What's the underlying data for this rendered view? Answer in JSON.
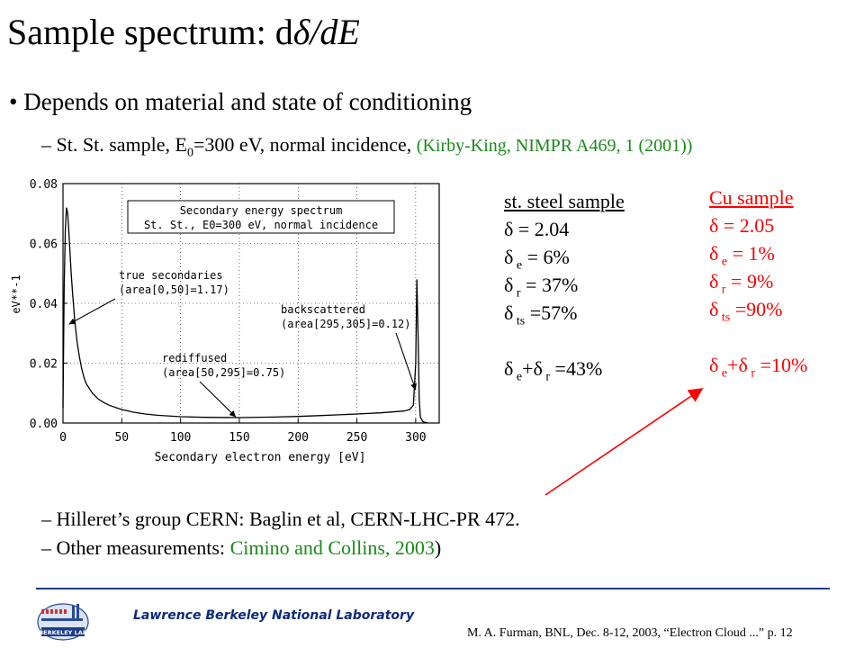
{
  "title": {
    "prefix": "Sample spectrum: d",
    "delta": "δ",
    "suffix": "/dE"
  },
  "bullet": "• Depends on material and state of conditioning",
  "sub1": {
    "text_before": "– St. St. sample, E",
    "subscript": "0",
    "text_after": "=300 eV, normal incidence, ",
    "citation": "(Kirby-King, NIMPR A469, 1 (2001))"
  },
  "steel": {
    "heading": "st. steel sample",
    "rows": [
      {
        "sym": "δ",
        "sub": "",
        "val": " = 2.04"
      },
      {
        "sym": "δ",
        "sub": " e",
        "val": " =   6%"
      },
      {
        "sym": "δ",
        "sub": " r",
        "val": " = 37%"
      },
      {
        "sym": "δ",
        "sub": " ts",
        "val": " =57%"
      },
      {
        "sym": "",
        "sub": "",
        "val": ""
      },
      {
        "sym": "δ",
        "sub": " e",
        "val": "+δ",
        "sub2": " r",
        "val2": " =43%"
      }
    ]
  },
  "cu": {
    "heading": "Cu sample",
    "rows": [
      {
        "sym": "δ",
        "sub": "",
        "val": " = 2.05"
      },
      {
        "sym": "δ",
        "sub": " e",
        "val": " =   1%"
      },
      {
        "sym": "δ",
        "sub": " r",
        "val": " =   9%"
      },
      {
        "sym": "δ",
        "sub": " ts",
        "val": " =90%"
      },
      {
        "sym": "",
        "sub": "",
        "val": ""
      },
      {
        "sym": "δ",
        "sub": " e",
        "val": "+δ",
        "sub2": " r",
        "val2": " =10%"
      }
    ]
  },
  "other1": "– Hilleret’s group CERN: Baglin et al, CERN-LHC-PR 472.",
  "other2": {
    "prefix": "– Other measurements: ",
    "link": "Cimino and Collins, 2003",
    "suffix": ")"
  },
  "footer": {
    "lab_name": "Lawrence Berkeley National Laboratory",
    "credit": "M. A. Furman, BNL, Dec. 8-12, 2003, “Electron Cloud ...”  p. 12",
    "logo_text": "BERKELEY LAB"
  },
  "colors": {
    "accent_red": "#ff0000",
    "green": "#1a8a1a",
    "footer_blue": "#1c3c8c"
  },
  "chart_data": {
    "type": "line",
    "title": "Secondary energy spectrum",
    "subtitle": "St. St., E0=300 eV, normal incidence",
    "xlabel": "Secondary electron energy [eV]",
    "ylabel": "eV**-1",
    "xlim": [
      0,
      320
    ],
    "ylim": [
      0,
      0.08
    ],
    "xticks": [
      "0",
      "50",
      "100",
      "150",
      "200",
      "250",
      "300"
    ],
    "yticks": [
      "0.00",
      "0.02",
      "0.04",
      "0.06",
      "0.08"
    ],
    "grid": true,
    "x": [
      0,
      1,
      2,
      3,
      4,
      5,
      6,
      7,
      8,
      9,
      10,
      12,
      14,
      16,
      18,
      20,
      25,
      30,
      35,
      40,
      50,
      60,
      70,
      80,
      100,
      120,
      150,
      180,
      200,
      220,
      250,
      270,
      280,
      290,
      295,
      298,
      300,
      301,
      302,
      303,
      304,
      306,
      308,
      310
    ],
    "y": [
      0.005,
      0.045,
      0.065,
      0.072,
      0.07,
      0.064,
      0.057,
      0.05,
      0.044,
      0.039,
      0.034,
      0.027,
      0.022,
      0.018,
      0.015,
      0.013,
      0.01,
      0.008,
      0.0068,
      0.0058,
      0.0045,
      0.0036,
      0.003,
      0.0026,
      0.0021,
      0.0019,
      0.0018,
      0.002,
      0.0022,
      0.0025,
      0.003,
      0.0034,
      0.0037,
      0.004,
      0.0045,
      0.006,
      0.02,
      0.048,
      0.03,
      0.008,
      0.002,
      0.0005,
      0.0002,
      0.0001
    ],
    "annotations": [
      {
        "text": "true secondaries",
        "text2": "(area[0,50]=1.17)",
        "x": 5,
        "y": 0.033
      },
      {
        "text": "rediffused",
        "text2": "(area[50,295]=0.75)",
        "x": 147,
        "y": 0.002
      },
      {
        "text": "backscattered",
        "text2": "(area[295,305]=0.12)",
        "x": 300,
        "y": 0.011
      }
    ]
  }
}
